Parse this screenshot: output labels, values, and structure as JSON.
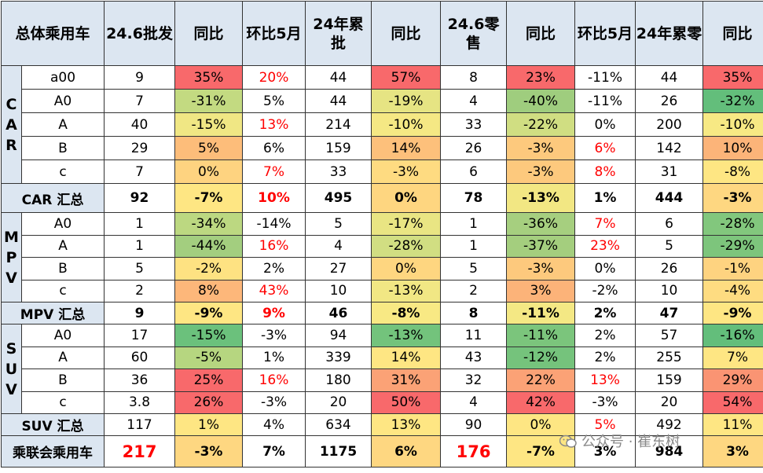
{
  "header": [
    "总体乘用车",
    "24.6批发",
    "同比",
    "环比5月",
    "24年累批",
    "同比",
    "24.6零售",
    "同比",
    "环比5月",
    "24年累零",
    "同比"
  ],
  "groups": [
    {
      "label": "CAR",
      "rows": [
        {
          "seg": "a00",
          "cells": [
            {
              "v": "9"
            },
            {
              "v": "35%",
              "bg": "#f8696b"
            },
            {
              "v": "20%",
              "red": true
            },
            {
              "v": "44"
            },
            {
              "v": "57%",
              "bg": "#f8696b"
            },
            {
              "v": "8"
            },
            {
              "v": "23%",
              "bg": "#f8696b"
            },
            {
              "v": "-11%"
            },
            {
              "v": "44"
            },
            {
              "v": "35%",
              "bg": "#f8696b"
            }
          ]
        },
        {
          "seg": "A0",
          "cells": [
            {
              "v": "7"
            },
            {
              "v": "-31%",
              "bg": "#c3da81"
            },
            {
              "v": "5%"
            },
            {
              "v": "44"
            },
            {
              "v": "-19%",
              "bg": "#e6e483"
            },
            {
              "v": "4"
            },
            {
              "v": "-40%",
              "bg": "#9fcd7e"
            },
            {
              "v": "-11%"
            },
            {
              "v": "26"
            },
            {
              "v": "-32%",
              "bg": "#63be7b"
            }
          ]
        },
        {
          "seg": "A",
          "cells": [
            {
              "v": "40"
            },
            {
              "v": "-15%",
              "bg": "#f0e784"
            },
            {
              "v": "13%",
              "red": true
            },
            {
              "v": "214"
            },
            {
              "v": "-10%",
              "bg": "#f5e884"
            },
            {
              "v": "33"
            },
            {
              "v": "-22%",
              "bg": "#d0de82"
            },
            {
              "v": "0%"
            },
            {
              "v": "200"
            },
            {
              "v": "-10%",
              "bg": "#f7e984"
            }
          ]
        },
        {
          "seg": "B",
          "cells": [
            {
              "v": "29"
            },
            {
              "v": "5%",
              "bg": "#fdbd7a"
            },
            {
              "v": "6%"
            },
            {
              "v": "159"
            },
            {
              "v": "14%",
              "bg": "#fdc07b"
            },
            {
              "v": "26"
            },
            {
              "v": "-3%",
              "bg": "#fdc97d"
            },
            {
              "v": "6%",
              "red": true
            },
            {
              "v": "142"
            },
            {
              "v": "10%",
              "bg": "#fcb479"
            }
          ]
        },
        {
          "seg": "c",
          "cells": [
            {
              "v": "7"
            },
            {
              "v": "0%",
              "bg": "#fed380"
            },
            {
              "v": "7%",
              "red": true
            },
            {
              "v": "33"
            },
            {
              "v": "-3%",
              "bg": "#fedb81"
            },
            {
              "v": "6"
            },
            {
              "v": "-3%",
              "bg": "#fdc97d"
            },
            {
              "v": "8%",
              "red": true
            },
            {
              "v": "31"
            },
            {
              "v": "-8%",
              "bg": "#fee683"
            }
          ]
        }
      ],
      "summary": {
        "label": "CAR 汇总",
        "cells": [
          {
            "v": "92"
          },
          {
            "v": "-7%",
            "bg": "#fee683"
          },
          {
            "v": "10%",
            "red": true
          },
          {
            "v": "495"
          },
          {
            "v": "0%",
            "bg": "#fed680"
          },
          {
            "v": "78"
          },
          {
            "v": "-13%",
            "bg": "#f2e783"
          },
          {
            "v": "1%"
          },
          {
            "v": "444"
          },
          {
            "v": "-3%",
            "bg": "#fed781"
          }
        ]
      }
    },
    {
      "label": "MPV",
      "rows": [
        {
          "seg": "A0",
          "cells": [
            {
              "v": "1"
            },
            {
              "v": "-34%",
              "bg": "#bcd881"
            },
            {
              "v": "-14%"
            },
            {
              "v": "5"
            },
            {
              "v": "-17%",
              "bg": "#e9e583"
            },
            {
              "v": "1"
            },
            {
              "v": "-36%",
              "bg": "#a6cf7f"
            },
            {
              "v": "7%",
              "red": true
            },
            {
              "v": "6"
            },
            {
              "v": "-28%",
              "bg": "#82c77d"
            }
          ]
        },
        {
          "seg": "A",
          "cells": [
            {
              "v": "1"
            },
            {
              "v": "-44%",
              "bg": "#a3ce7f"
            },
            {
              "v": "16%",
              "red": true
            },
            {
              "v": "4"
            },
            {
              "v": "-28%",
              "bg": "#d1de82"
            },
            {
              "v": "1"
            },
            {
              "v": "-37%",
              "bg": "#a4ce7e"
            },
            {
              "v": "23%",
              "red": true
            },
            {
              "v": "5"
            },
            {
              "v": "-29%",
              "bg": "#7dc57c"
            }
          ]
        },
        {
          "seg": "B",
          "cells": [
            {
              "v": "5"
            },
            {
              "v": "-2%",
              "bg": "#fee282"
            },
            {
              "v": "2%"
            },
            {
              "v": "27"
            },
            {
              "v": "0%",
              "bg": "#fed680"
            },
            {
              "v": "5"
            },
            {
              "v": "-3%",
              "bg": "#fdc97d"
            },
            {
              "v": "0%"
            },
            {
              "v": "26"
            },
            {
              "v": "-1%",
              "bg": "#fed380"
            }
          ]
        },
        {
          "seg": "c",
          "cells": [
            {
              "v": "2"
            },
            {
              "v": "8%",
              "bg": "#fdb77a"
            },
            {
              "v": "43%",
              "red": true
            },
            {
              "v": "10"
            },
            {
              "v": "-13%",
              "bg": "#f1e784"
            },
            {
              "v": "2"
            },
            {
              "v": "3%",
              "bg": "#fcb379"
            },
            {
              "v": "-2%"
            },
            {
              "v": "10"
            },
            {
              "v": "-4%",
              "bg": "#fedc81"
            }
          ]
        }
      ],
      "summary": {
        "label": "MPV 汇总",
        "cells": [
          {
            "v": "9"
          },
          {
            "v": "-9%",
            "bg": "#fee683"
          },
          {
            "v": "9%",
            "red": true
          },
          {
            "v": "46"
          },
          {
            "v": "-8%",
            "bg": "#f8e984"
          },
          {
            "v": "8"
          },
          {
            "v": "-11%",
            "bg": "#f4e884"
          },
          {
            "v": "2%"
          },
          {
            "v": "47"
          },
          {
            "v": "-9%",
            "bg": "#fee683"
          }
        ]
      }
    },
    {
      "label": "SUV",
      "rows": [
        {
          "seg": "A0",
          "cells": [
            {
              "v": "17"
            },
            {
              "v": "-15%",
              "bg": "#6bc17c"
            },
            {
              "v": "-3%"
            },
            {
              "v": "94"
            },
            {
              "v": "-13%",
              "bg": "#73c37c"
            },
            {
              "v": "11"
            },
            {
              "v": "-11%",
              "bg": "#7bc57c"
            },
            {
              "v": "2%"
            },
            {
              "v": "57"
            },
            {
              "v": "-16%",
              "bg": "#63be7b"
            }
          ]
        },
        {
          "seg": "A",
          "cells": [
            {
              "v": "60"
            },
            {
              "v": "-5%",
              "bg": "#b6d680"
            },
            {
              "v": "1%"
            },
            {
              "v": "339"
            },
            {
              "v": "14%",
              "bg": "#fee683"
            },
            {
              "v": "43"
            },
            {
              "v": "-12%",
              "bg": "#75c37c"
            },
            {
              "v": "2%"
            },
            {
              "v": "255"
            },
            {
              "v": "7%",
              "bg": "#fee683"
            }
          ]
        },
        {
          "seg": "B",
          "cells": [
            {
              "v": "36"
            },
            {
              "v": "25%",
              "bg": "#f8696b"
            },
            {
              "v": "16%",
              "red": true
            },
            {
              "v": "180"
            },
            {
              "v": "31%",
              "bg": "#fba276"
            },
            {
              "v": "32"
            },
            {
              "v": "22%",
              "bg": "#fba276"
            },
            {
              "v": "13%",
              "red": true
            },
            {
              "v": "159"
            },
            {
              "v": "29%",
              "bg": "#fa9473"
            }
          ]
        },
        {
          "seg": "c",
          "cells": [
            {
              "v": "3.8"
            },
            {
              "v": "26%",
              "bg": "#f8696b"
            },
            {
              "v": "-3%"
            },
            {
              "v": "20"
            },
            {
              "v": "50%",
              "bg": "#f8696b"
            },
            {
              "v": "4"
            },
            {
              "v": "42%",
              "bg": "#f8696b"
            },
            {
              "v": "-3%"
            },
            {
              "v": "20"
            },
            {
              "v": "54%",
              "bg": "#f8696b"
            }
          ]
        }
      ],
      "summary": {
        "label": "SUV 汇总",
        "cells": [
          {
            "v": "117"
          },
          {
            "v": "1%",
            "bg": "#fee683"
          },
          {
            "v": "4%"
          },
          {
            "v": "634"
          },
          {
            "v": "13%",
            "bg": "#fee683"
          },
          {
            "v": "90"
          },
          {
            "v": "0%",
            "bg": "#fee683"
          },
          {
            "v": "5%",
            "red": true
          },
          {
            "v": "492"
          },
          {
            "v": "11%",
            "bg": "#fee683"
          }
        ]
      }
    }
  ],
  "total": {
    "label": "乘联会乘用车",
    "cells": [
      {
        "v": "217",
        "big": true
      },
      {
        "v": "-3%",
        "bg": "#fed781"
      },
      {
        "v": "7%"
      },
      {
        "v": "1175"
      },
      {
        "v": "6%",
        "bg": "#fed781"
      },
      {
        "v": "176",
        "big": true
      },
      {
        "v": "-7%",
        "bg": "#fee683"
      },
      {
        "v": "3%"
      },
      {
        "v": "984"
      },
      {
        "v": "3%",
        "bg": "#fed781"
      }
    ]
  },
  "watermark": "公众号 · 崔东树",
  "colors": {
    "header_bg": "#dce6f1",
    "red_text": "#ff0000",
    "green": "#63be7b",
    "yellow": "#fee683",
    "red": "#f8696b"
  }
}
